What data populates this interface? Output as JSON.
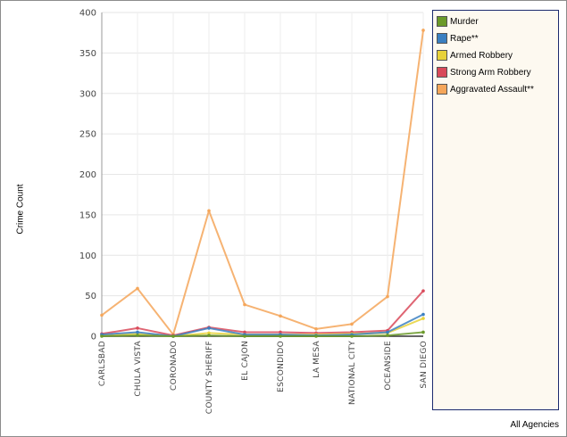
{
  "chart_data": {
    "type": "line",
    "ylabel": "Crime Count",
    "xlabel": "",
    "ylim": [
      0,
      400
    ],
    "yticks": [
      0,
      50,
      100,
      150,
      200,
      250,
      300,
      350,
      400
    ],
    "grid": true,
    "legend_position": "right",
    "categories": [
      "CARLSBAD",
      "CHULA VISTA",
      "CORONADO",
      "COUNTY SHERIFF",
      "EL CAJON",
      "ESCONDIDO",
      "LA MESA",
      "NATIONAL CITY",
      "OCEANSIDE",
      "SAN DIEGO"
    ],
    "series": [
      {
        "name": "Murder",
        "color": "#6b9a2a",
        "values": [
          0,
          1,
          0,
          1,
          0,
          0,
          0,
          0,
          1,
          5
        ]
      },
      {
        "name": "Rape**",
        "color": "#3a7fc1",
        "values": [
          2,
          5,
          0,
          10,
          2,
          2,
          1,
          2,
          5,
          27
        ]
      },
      {
        "name": "Armed Robbery",
        "color": "#e8d23a",
        "values": [
          1,
          3,
          0,
          4,
          2,
          2,
          2,
          3,
          4,
          22
        ]
      },
      {
        "name": "Strong Arm Robbery",
        "color": "#d94a5a",
        "values": [
          3,
          10,
          1,
          11,
          5,
          5,
          4,
          5,
          7,
          56
        ]
      },
      {
        "name": "Aggravated Assault**",
        "color": "#f5a65a",
        "values": [
          26,
          59,
          2,
          155,
          39,
          25,
          9,
          15,
          49,
          378
        ]
      }
    ]
  },
  "footer_text": "All Agencies"
}
